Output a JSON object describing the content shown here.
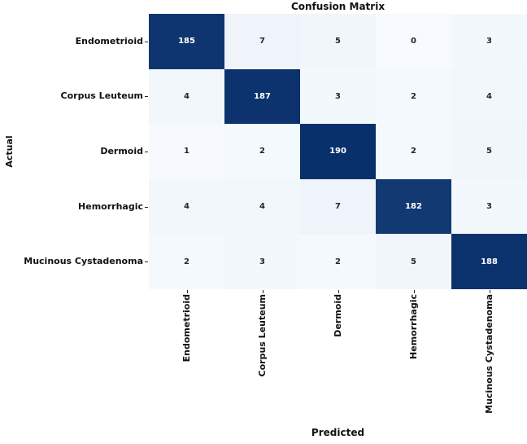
{
  "chart_data": {
    "type": "heatmap",
    "title": "Confusion Matrix",
    "xlabel": "Predicted",
    "ylabel": "Actual",
    "x_categories": [
      "Endometrioid",
      "Corpus Leuteum",
      "Dermoid",
      "Hemorrhagic",
      "Mucinous Cystadenoma"
    ],
    "y_categories": [
      "Endometrioid",
      "Corpus Leuteum",
      "Dermoid",
      "Hemorrhagic",
      "Mucinous Cystadenoma"
    ],
    "rows": [
      [
        185,
        7,
        5,
        0,
        3
      ],
      [
        4,
        187,
        3,
        2,
        4
      ],
      [
        1,
        2,
        190,
        2,
        5
      ],
      [
        4,
        4,
        7,
        182,
        3
      ],
      [
        2,
        3,
        2,
        5,
        188
      ]
    ],
    "vmin": 0,
    "vmax": 190,
    "colormap": "Blues",
    "color_low": "#f7fbff",
    "color_high": "#08306b",
    "annot_color_on_dark": "#ffffff",
    "annot_color_on_light": "#262626",
    "grid": false,
    "legend": "none"
  }
}
